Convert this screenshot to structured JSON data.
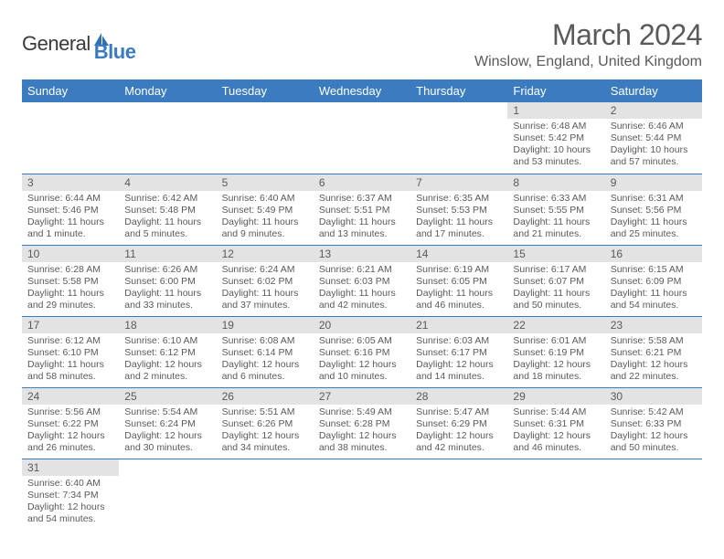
{
  "logo": {
    "text1": "General",
    "text2": "Blue"
  },
  "title": "March 2024",
  "location": "Winslow, England, United Kingdom",
  "headers": [
    "Sunday",
    "Monday",
    "Tuesday",
    "Wednesday",
    "Thursday",
    "Friday",
    "Saturday"
  ],
  "colors": {
    "header_bg": "#3b7bbf",
    "header_fg": "#ffffff",
    "daynum_bg": "#e3e3e3",
    "text": "#5a5a5a",
    "row_border": "#3b7bbf"
  },
  "weeks": [
    [
      null,
      null,
      null,
      null,
      null,
      {
        "n": "1",
        "sunrise": "Sunrise: 6:48 AM",
        "sunset": "Sunset: 5:42 PM",
        "daylight": "Daylight: 10 hours and 53 minutes."
      },
      {
        "n": "2",
        "sunrise": "Sunrise: 6:46 AM",
        "sunset": "Sunset: 5:44 PM",
        "daylight": "Daylight: 10 hours and 57 minutes."
      }
    ],
    [
      {
        "n": "3",
        "sunrise": "Sunrise: 6:44 AM",
        "sunset": "Sunset: 5:46 PM",
        "daylight": "Daylight: 11 hours and 1 minute."
      },
      {
        "n": "4",
        "sunrise": "Sunrise: 6:42 AM",
        "sunset": "Sunset: 5:48 PM",
        "daylight": "Daylight: 11 hours and 5 minutes."
      },
      {
        "n": "5",
        "sunrise": "Sunrise: 6:40 AM",
        "sunset": "Sunset: 5:49 PM",
        "daylight": "Daylight: 11 hours and 9 minutes."
      },
      {
        "n": "6",
        "sunrise": "Sunrise: 6:37 AM",
        "sunset": "Sunset: 5:51 PM",
        "daylight": "Daylight: 11 hours and 13 minutes."
      },
      {
        "n": "7",
        "sunrise": "Sunrise: 6:35 AM",
        "sunset": "Sunset: 5:53 PM",
        "daylight": "Daylight: 11 hours and 17 minutes."
      },
      {
        "n": "8",
        "sunrise": "Sunrise: 6:33 AM",
        "sunset": "Sunset: 5:55 PM",
        "daylight": "Daylight: 11 hours and 21 minutes."
      },
      {
        "n": "9",
        "sunrise": "Sunrise: 6:31 AM",
        "sunset": "Sunset: 5:56 PM",
        "daylight": "Daylight: 11 hours and 25 minutes."
      }
    ],
    [
      {
        "n": "10",
        "sunrise": "Sunrise: 6:28 AM",
        "sunset": "Sunset: 5:58 PM",
        "daylight": "Daylight: 11 hours and 29 minutes."
      },
      {
        "n": "11",
        "sunrise": "Sunrise: 6:26 AM",
        "sunset": "Sunset: 6:00 PM",
        "daylight": "Daylight: 11 hours and 33 minutes."
      },
      {
        "n": "12",
        "sunrise": "Sunrise: 6:24 AM",
        "sunset": "Sunset: 6:02 PM",
        "daylight": "Daylight: 11 hours and 37 minutes."
      },
      {
        "n": "13",
        "sunrise": "Sunrise: 6:21 AM",
        "sunset": "Sunset: 6:03 PM",
        "daylight": "Daylight: 11 hours and 42 minutes."
      },
      {
        "n": "14",
        "sunrise": "Sunrise: 6:19 AM",
        "sunset": "Sunset: 6:05 PM",
        "daylight": "Daylight: 11 hours and 46 minutes."
      },
      {
        "n": "15",
        "sunrise": "Sunrise: 6:17 AM",
        "sunset": "Sunset: 6:07 PM",
        "daylight": "Daylight: 11 hours and 50 minutes."
      },
      {
        "n": "16",
        "sunrise": "Sunrise: 6:15 AM",
        "sunset": "Sunset: 6:09 PM",
        "daylight": "Daylight: 11 hours and 54 minutes."
      }
    ],
    [
      {
        "n": "17",
        "sunrise": "Sunrise: 6:12 AM",
        "sunset": "Sunset: 6:10 PM",
        "daylight": "Daylight: 11 hours and 58 minutes."
      },
      {
        "n": "18",
        "sunrise": "Sunrise: 6:10 AM",
        "sunset": "Sunset: 6:12 PM",
        "daylight": "Daylight: 12 hours and 2 minutes."
      },
      {
        "n": "19",
        "sunrise": "Sunrise: 6:08 AM",
        "sunset": "Sunset: 6:14 PM",
        "daylight": "Daylight: 12 hours and 6 minutes."
      },
      {
        "n": "20",
        "sunrise": "Sunrise: 6:05 AM",
        "sunset": "Sunset: 6:16 PM",
        "daylight": "Daylight: 12 hours and 10 minutes."
      },
      {
        "n": "21",
        "sunrise": "Sunrise: 6:03 AM",
        "sunset": "Sunset: 6:17 PM",
        "daylight": "Daylight: 12 hours and 14 minutes."
      },
      {
        "n": "22",
        "sunrise": "Sunrise: 6:01 AM",
        "sunset": "Sunset: 6:19 PM",
        "daylight": "Daylight: 12 hours and 18 minutes."
      },
      {
        "n": "23",
        "sunrise": "Sunrise: 5:58 AM",
        "sunset": "Sunset: 6:21 PM",
        "daylight": "Daylight: 12 hours and 22 minutes."
      }
    ],
    [
      {
        "n": "24",
        "sunrise": "Sunrise: 5:56 AM",
        "sunset": "Sunset: 6:22 PM",
        "daylight": "Daylight: 12 hours and 26 minutes."
      },
      {
        "n": "25",
        "sunrise": "Sunrise: 5:54 AM",
        "sunset": "Sunset: 6:24 PM",
        "daylight": "Daylight: 12 hours and 30 minutes."
      },
      {
        "n": "26",
        "sunrise": "Sunrise: 5:51 AM",
        "sunset": "Sunset: 6:26 PM",
        "daylight": "Daylight: 12 hours and 34 minutes."
      },
      {
        "n": "27",
        "sunrise": "Sunrise: 5:49 AM",
        "sunset": "Sunset: 6:28 PM",
        "daylight": "Daylight: 12 hours and 38 minutes."
      },
      {
        "n": "28",
        "sunrise": "Sunrise: 5:47 AM",
        "sunset": "Sunset: 6:29 PM",
        "daylight": "Daylight: 12 hours and 42 minutes."
      },
      {
        "n": "29",
        "sunrise": "Sunrise: 5:44 AM",
        "sunset": "Sunset: 6:31 PM",
        "daylight": "Daylight: 12 hours and 46 minutes."
      },
      {
        "n": "30",
        "sunrise": "Sunrise: 5:42 AM",
        "sunset": "Sunset: 6:33 PM",
        "daylight": "Daylight: 12 hours and 50 minutes."
      }
    ],
    [
      {
        "n": "31",
        "sunrise": "Sunrise: 6:40 AM",
        "sunset": "Sunset: 7:34 PM",
        "daylight": "Daylight: 12 hours and 54 minutes."
      },
      null,
      null,
      null,
      null,
      null,
      null
    ]
  ]
}
